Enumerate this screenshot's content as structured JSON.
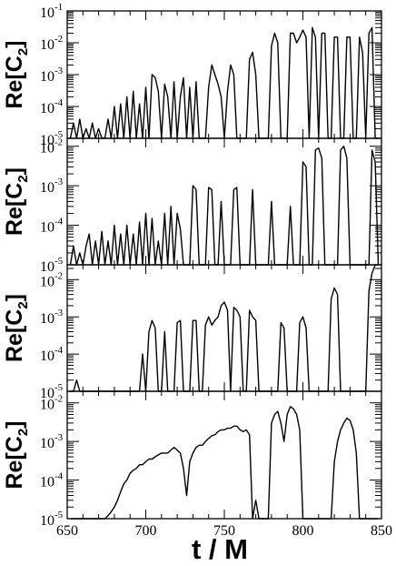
{
  "chart_data": [
    {
      "type": "line",
      "ylabel": {
        "base": "Re[C",
        "sub": "2",
        "close": "]"
      },
      "yscale": "log",
      "ylim_exp": [
        -5,
        -1
      ],
      "ytick_exponents": [
        "-5",
        "-4",
        "-3",
        "-2",
        "-1"
      ],
      "xlim": [
        650,
        850
      ],
      "x": [
        652,
        654,
        656,
        658,
        660,
        662,
        664,
        666,
        668,
        670,
        672,
        674,
        676,
        678,
        680,
        682,
        684,
        686,
        688,
        690,
        692,
        694,
        696,
        698,
        700,
        702,
        704,
        706,
        708,
        710,
        712,
        714,
        716,
        718,
        720,
        722,
        724,
        726,
        728,
        730,
        732,
        734,
        736,
        738,
        740,
        742,
        744,
        746,
        748,
        750,
        752,
        754,
        756,
        758,
        760,
        762,
        764,
        766,
        768,
        770,
        772,
        774,
        776,
        778,
        780,
        782,
        784,
        786,
        788,
        790,
        792,
        794,
        796,
        798,
        800,
        802,
        804,
        806,
        808,
        810,
        812,
        814,
        816,
        818,
        820,
        822,
        824,
        826,
        828,
        830,
        832,
        834,
        836,
        838,
        840,
        842,
        844,
        846,
        848
      ],
      "values": [
        1e-05,
        3e-05,
        1e-05,
        4e-05,
        1e-05,
        2e-05,
        1e-05,
        3e-05,
        1e-05,
        2e-05,
        1e-05,
        1e-05,
        4e-05,
        1e-05,
        0.0001,
        1e-05,
        0.00012,
        1e-05,
        0.0002,
        1e-05,
        0.0003,
        1e-05,
        0.00012,
        1e-05,
        0.0004,
        1e-05,
        0.001,
        0.0008,
        0.0003,
        1e-05,
        0.0005,
        0.0002,
        1e-05,
        0.0006,
        1e-05,
        0.0002,
        0.0008,
        1e-05,
        0.0004,
        1e-05,
        0.0006,
        1e-05,
        1e-05,
        1e-05,
        0.0004,
        0.002,
        0.001,
        0.0005,
        0.0002,
        1e-05,
        0.0003,
        0.002,
        0.001,
        1e-05,
        1e-05,
        1e-05,
        1e-05,
        0.003,
        0.005,
        0.001,
        1e-05,
        1e-05,
        1e-05,
        1e-05,
        0.008,
        0.02,
        0.01,
        1e-05,
        1e-05,
        1e-05,
        0.02,
        0.02,
        0.01,
        0.015,
        0.025,
        0.015,
        1e-05,
        0.03,
        0.015,
        1e-05,
        0.02,
        0.02,
        1e-05,
        1e-05,
        0.015,
        0.015,
        1e-05,
        1e-05,
        0.015,
        0.015,
        1e-05,
        1e-05,
        0.015,
        0.005,
        1e-05,
        0.02,
        0.03,
        1e-05,
        1e-05
      ]
    },
    {
      "type": "line",
      "ylabel": {
        "base": "Re[C",
        "sub": "2",
        "close": "]"
      },
      "yscale": "log",
      "ylim_exp": [
        -5,
        -1.8
      ],
      "ytick_exponents": [
        "-5",
        "-4",
        "-3",
        "-2"
      ],
      "xlim": [
        650,
        850
      ],
      "x": [
        652,
        654,
        656,
        658,
        660,
        662,
        664,
        666,
        668,
        670,
        672,
        674,
        676,
        678,
        680,
        682,
        684,
        686,
        688,
        690,
        692,
        694,
        696,
        698,
        700,
        702,
        704,
        706,
        708,
        710,
        712,
        714,
        716,
        718,
        720,
        722,
        724,
        726,
        728,
        730,
        732,
        734,
        736,
        738,
        740,
        742,
        744,
        746,
        748,
        750,
        752,
        754,
        756,
        758,
        760,
        762,
        764,
        766,
        768,
        770,
        772,
        774,
        776,
        778,
        780,
        782,
        784,
        786,
        788,
        790,
        792,
        794,
        796,
        798,
        800,
        802,
        804,
        806,
        808,
        810,
        812,
        814,
        816,
        818,
        820,
        822,
        824,
        826,
        828,
        830,
        832,
        834,
        836,
        838,
        840,
        842,
        844,
        846,
        848
      ],
      "values": [
        1e-05,
        3e-05,
        1e-05,
        2e-05,
        1e-05,
        3e-05,
        6e-05,
        1e-05,
        4e-05,
        1e-05,
        7e-05,
        1e-05,
        4e-05,
        1e-05,
        0.0001,
        1e-05,
        6e-05,
        1e-05,
        0.0001,
        1e-05,
        6e-05,
        1e-05,
        0.00012,
        1e-05,
        0.0002,
        1e-05,
        0.00015,
        1e-05,
        4e-05,
        1e-05,
        0.0002,
        1e-05,
        0.0003,
        1e-05,
        0.0002,
        8e-05,
        1e-05,
        1e-05,
        1e-05,
        0.001,
        0.0008,
        1e-05,
        1e-05,
        1e-05,
        0.0009,
        0.0008,
        1e-05,
        1e-05,
        0.0004,
        1e-05,
        1e-05,
        1e-05,
        0.0008,
        0.0009,
        1e-05,
        1e-05,
        1e-05,
        1e-05,
        0.0008,
        1e-05,
        1e-05,
        1e-05,
        1e-05,
        1e-05,
        0.0004,
        1e-05,
        1e-05,
        1e-05,
        1e-05,
        1e-05,
        0.0003,
        1e-05,
        1e-05,
        1e-05,
        0.004,
        0.003,
        1e-05,
        1e-05,
        0.008,
        0.009,
        0.005,
        1e-05,
        1e-05,
        1e-05,
        1e-05,
        1e-05,
        0.008,
        0.01,
        0.005,
        1e-05,
        1e-05,
        1e-05,
        1e-05,
        1e-05,
        1e-05,
        1e-05,
        0.008,
        0.004,
        1e-05
      ]
    },
    {
      "type": "line",
      "ylabel": {
        "base": "Re[C",
        "sub": "2",
        "close": "]"
      },
      "yscale": "log",
      "ylim_exp": [
        -5,
        -1.6
      ],
      "ytick_exponents": [
        "-5",
        "-4",
        "-3",
        "-2"
      ],
      "xlim": [
        650,
        850
      ],
      "x": [
        652,
        654,
        656,
        658,
        660,
        662,
        664,
        666,
        668,
        670,
        672,
        674,
        676,
        678,
        680,
        682,
        684,
        686,
        688,
        690,
        692,
        694,
        696,
        698,
        700,
        702,
        704,
        706,
        708,
        710,
        712,
        714,
        716,
        718,
        720,
        722,
        724,
        726,
        728,
        730,
        732,
        734,
        736,
        738,
        740,
        742,
        744,
        746,
        748,
        750,
        752,
        754,
        756,
        758,
        760,
        762,
        764,
        766,
        768,
        770,
        772,
        774,
        776,
        778,
        780,
        782,
        784,
        786,
        788,
        790,
        792,
        794,
        796,
        798,
        800,
        802,
        804,
        806,
        808,
        810,
        812,
        814,
        816,
        818,
        820,
        822,
        824,
        826,
        828,
        830,
        832,
        834,
        836,
        838,
        840,
        842,
        844,
        846,
        848
      ],
      "values": [
        1e-05,
        1e-05,
        2e-05,
        1e-05,
        1e-05,
        1e-05,
        1e-05,
        1e-05,
        1e-05,
        1e-05,
        1e-05,
        1e-05,
        1e-05,
        1e-05,
        1e-05,
        1e-05,
        1e-05,
        1e-05,
        1e-05,
        1e-05,
        1e-05,
        1e-05,
        1e-05,
        0.0001,
        1e-05,
        0.0004,
        0.0008,
        0.0005,
        1e-05,
        1e-05,
        0.0004,
        1e-05,
        1e-05,
        1e-05,
        0.0007,
        0.0008,
        1e-05,
        1e-05,
        1e-05,
        0.0008,
        0.0008,
        1e-05,
        1e-05,
        0.0006,
        0.001,
        0.0006,
        0.0008,
        0.001,
        0.002,
        0.0025,
        0.0015,
        1e-05,
        0.0018,
        0.0015,
        0.001,
        1e-05,
        1e-05,
        0.0015,
        0.001,
        0.0008,
        1e-05,
        1e-05,
        1e-05,
        1e-05,
        1e-05,
        1e-05,
        1e-05,
        0.0007,
        0.0005,
        1e-05,
        1e-05,
        1e-05,
        1e-05,
        0.0007,
        0.001,
        0.0005,
        1e-05,
        1e-05,
        1e-05,
        1e-05,
        1e-05,
        1e-05,
        1e-05,
        0.003,
        0.006,
        0.004,
        1e-05,
        1e-05,
        1e-05,
        1e-05,
        1e-05,
        1e-05,
        1e-05,
        1e-05,
        1e-05,
        0.005,
        0.015,
        0.025,
        0.025
      ]
    },
    {
      "type": "line",
      "ylabel": {
        "base": "Re[C",
        "sub": "2",
        "close": "]"
      },
      "yscale": "log",
      "ylim_exp": [
        -5,
        -1.7
      ],
      "ytick_exponents": [
        "-5",
        "-4",
        "-3",
        "-2"
      ],
      "xlim": [
        650,
        850
      ],
      "xticks": [
        "650",
        "700",
        "750",
        "800",
        "850"
      ],
      "xlabel": "t / M",
      "x": [
        652,
        654,
        656,
        658,
        660,
        662,
        664,
        666,
        668,
        670,
        672,
        674,
        676,
        678,
        680,
        682,
        684,
        686,
        688,
        690,
        692,
        694,
        696,
        698,
        700,
        702,
        704,
        706,
        708,
        710,
        712,
        714,
        716,
        718,
        720,
        722,
        724,
        726,
        728,
        730,
        732,
        734,
        736,
        738,
        740,
        742,
        744,
        746,
        748,
        750,
        752,
        754,
        756,
        758,
        760,
        762,
        764,
        766,
        768,
        770,
        772,
        774,
        776,
        778,
        780,
        782,
        784,
        786,
        788,
        790,
        792,
        794,
        796,
        798,
        800,
        802,
        804,
        806,
        808,
        810,
        812,
        814,
        816,
        818,
        820,
        822,
        824,
        826,
        828,
        830,
        832,
        834,
        836,
        838,
        840,
        842,
        844,
        846,
        848
      ],
      "values": [
        1e-05,
        1e-05,
        1e-05,
        1e-05,
        1e-05,
        1e-05,
        1e-05,
        1e-05,
        1e-05,
        1e-05,
        1e-05,
        1e-05,
        1.2e-05,
        1.5e-05,
        2e-05,
        3e-05,
        5e-05,
        8e-05,
        0.0001,
        0.00015,
        0.00018,
        0.0002,
        0.00025,
        0.00025,
        0.0003,
        0.00035,
        0.00035,
        0.0004,
        0.00045,
        0.0005,
        0.0005,
        0.0005,
        0.0006,
        0.0007,
        0.0006,
        0.0005,
        0.0002,
        4e-05,
        0.0003,
        0.0005,
        0.0007,
        0.0008,
        0.0008,
        0.001,
        0.0012,
        0.0014,
        0.0015,
        0.0018,
        0.002,
        0.002,
        0.0022,
        0.0022,
        0.0025,
        0.0025,
        0.002,
        0.0018,
        0.002,
        0.0015,
        1e-05,
        3e-05,
        1e-05,
        1e-05,
        1e-05,
        1e-05,
        0.003,
        0.005,
        0.006,
        0.003,
        0.001,
        0.005,
        0.008,
        0.007,
        0.005,
        0.002,
        1e-05,
        1e-05,
        1e-05,
        1e-05,
        1e-05,
        1e-05,
        1e-05,
        1e-05,
        1e-05,
        1e-05,
        0.0003,
        0.001,
        0.002,
        0.003,
        0.004,
        0.0035,
        0.002,
        0.0005,
        1e-05,
        1e-05,
        1e-05,
        1e-05,
        1e-05,
        1e-05,
        1e-05
      ]
    }
  ]
}
